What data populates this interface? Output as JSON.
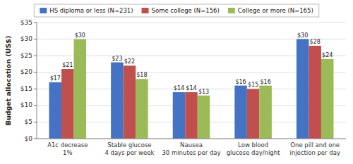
{
  "chart_data": {
    "type": "bar",
    "categories": [
      "A1c decrease\n1%",
      "Stable glucose\n4 days per week",
      "Nausea\n30 minutes per day",
      "Low blood\nglucose day/night",
      "One pill and one\ninjection per day"
    ],
    "series": [
      {
        "name": "HS diploma or less (N=231)",
        "color": "#4472C4",
        "values": [
          17,
          23,
          14,
          16,
          30
        ],
        "value_labels": [
          "$17",
          "$23",
          "$14",
          "$16",
          "$30"
        ]
      },
      {
        "name": "Some college (N=156)",
        "color": "#C0504D",
        "values": [
          21,
          22,
          14,
          15,
          28
        ],
        "value_labels": [
          "$21",
          "$22",
          "$14",
          "$15",
          "$28"
        ]
      },
      {
        "name": "College or more (N=165)",
        "color": "#9BBB59",
        "values": [
          30,
          18,
          13,
          16,
          24
        ],
        "value_labels": [
          "$30",
          "$18",
          "$13",
          "$16",
          "$24"
        ]
      }
    ],
    "y_label": "Budget allocation (US$)",
    "ylim": [
      0,
      35
    ],
    "yticks": [
      {
        "value": 0,
        "label": "$0"
      },
      {
        "value": 5,
        "label": "$5"
      },
      {
        "value": 10,
        "label": "$10"
      },
      {
        "value": 15,
        "label": "$15"
      },
      {
        "value": 20,
        "label": "$20"
      },
      {
        "value": 25,
        "label": "$25"
      },
      {
        "value": 30,
        "label": "$30"
      },
      {
        "value": 35,
        "label": "$35"
      }
    ],
    "grid": true,
    "legend": "top",
    "data_labels": true
  }
}
